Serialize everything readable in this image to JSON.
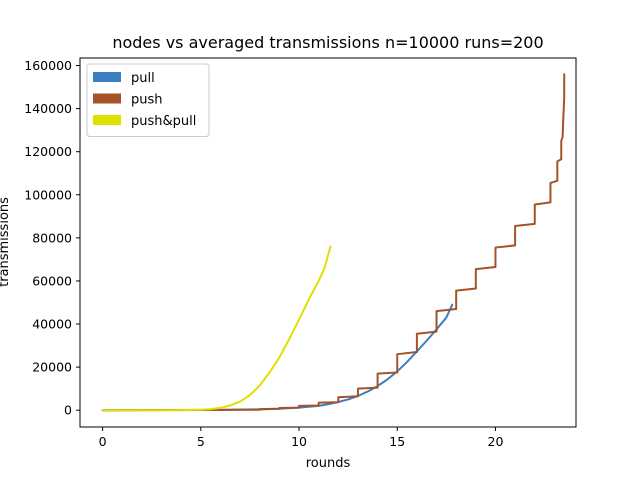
{
  "chart_data": {
    "type": "line",
    "title": "nodes vs averaged transmissions n=10000 runs=200",
    "xlabel": "rounds",
    "ylabel": "transmissions",
    "xlim": [
      -1.15,
      24.1
    ],
    "ylim": [
      -7800,
      163500
    ],
    "xticks": [
      0,
      5,
      10,
      15,
      20
    ],
    "xtick_labels": [
      "0",
      "5",
      "10",
      "15",
      "20"
    ],
    "yticks": [
      0,
      20000,
      40000,
      60000,
      80000,
      100000,
      120000,
      140000,
      160000
    ],
    "ytick_labels": [
      "0",
      "20000",
      "40000",
      "60000",
      "80000",
      "100000",
      "120000",
      "140000",
      "160000"
    ],
    "legend": "upper left",
    "grid": false,
    "series": [
      {
        "name": "pull",
        "color": "#3a7fc1",
        "x": [
          0,
          2,
          4,
          6,
          8,
          9,
          10,
          11,
          11.5,
          12,
          12.5,
          13,
          13.5,
          14,
          14.5,
          15,
          15.5,
          16,
          16.5,
          17,
          17.5,
          17.8
        ],
        "y": [
          0,
          10,
          40,
          150,
          400,
          700,
          1200,
          2000,
          2800,
          3800,
          5000,
          6600,
          8700,
          11200,
          14300,
          18000,
          22400,
          27300,
          32300,
          37500,
          43000,
          49000
        ]
      },
      {
        "name": "push",
        "color": "#a65228",
        "x": [
          0,
          8,
          8,
          9,
          9,
          10,
          10,
          11,
          11,
          12,
          12,
          13,
          13,
          14,
          14,
          15,
          15,
          16,
          16,
          17,
          17,
          18,
          18,
          19,
          19,
          20,
          20,
          21,
          21,
          22,
          22,
          22.8,
          22.8,
          23.15,
          23.15,
          23.35,
          23.35,
          23.42,
          23.45,
          23.5,
          23.5
        ],
        "y": [
          0,
          200,
          500,
          700,
          1000,
          1200,
          2000,
          2200,
          3500,
          3700,
          6000,
          6500,
          10000,
          10500,
          17000,
          17500,
          26000,
          27000,
          35500,
          36500,
          46000,
          47000,
          55500,
          56500,
          65500,
          66500,
          75500,
          76500,
          85500,
          86500,
          95500,
          96500,
          105500,
          106500,
          115500,
          116500,
          125000,
          127000,
          135000,
          145000,
          156000
        ]
      },
      {
        "name": "push&pull",
        "color": "#e0e000",
        "x": [
          0,
          1,
          2,
          3,
          4,
          5,
          5.5,
          6,
          6.5,
          7,
          7.5,
          8,
          8.5,
          9,
          9.5,
          10,
          10.5,
          11,
          11.3,
          11.6
        ],
        "y": [
          0,
          0,
          0,
          0,
          50,
          200,
          500,
          1100,
          2200,
          4000,
          7000,
          11500,
          17500,
          24500,
          33000,
          42000,
          51500,
          60000,
          66000,
          76000
        ]
      }
    ]
  }
}
